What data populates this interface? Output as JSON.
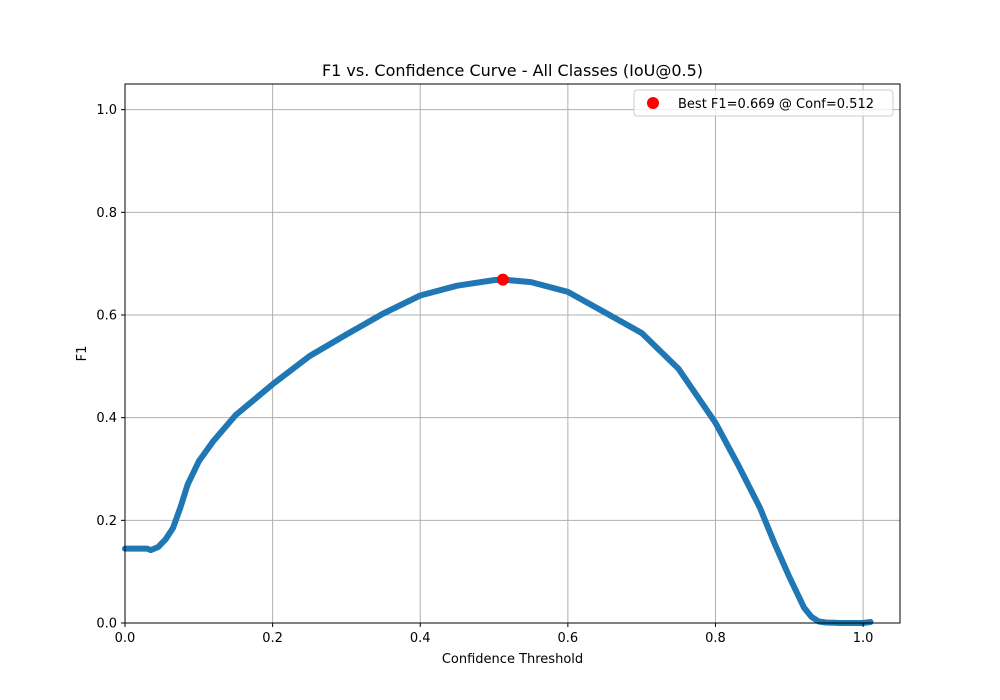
{
  "chart_data": {
    "type": "line",
    "title": "F1 vs. Confidence Curve - All Classes (IoU@0.5)",
    "xlabel": "Confidence Threshold",
    "ylabel": "F1",
    "xlim": [
      0.0,
      1.05
    ],
    "ylim": [
      0.0,
      1.05
    ],
    "grid": true,
    "x_ticks": [
      "0.0",
      "0.2",
      "0.4",
      "0.6",
      "0.8",
      "1.0"
    ],
    "y_ticks": [
      "0.0",
      "0.2",
      "0.4",
      "0.6",
      "0.8",
      "1.0"
    ],
    "legend_position": "top-right",
    "series": [
      {
        "name": "F1",
        "color": "#1f77b4",
        "x": [
          0.0,
          0.03,
          0.035,
          0.045,
          0.055,
          0.065,
          0.075,
          0.085,
          0.1,
          0.12,
          0.15,
          0.2,
          0.25,
          0.3,
          0.35,
          0.4,
          0.45,
          0.5,
          0.512,
          0.55,
          0.6,
          0.65,
          0.7,
          0.75,
          0.8,
          0.83,
          0.86,
          0.88,
          0.9,
          0.92,
          0.93,
          0.94,
          0.95,
          0.97,
          1.0,
          1.01
        ],
        "y": [
          0.145,
          0.145,
          0.142,
          0.148,
          0.163,
          0.185,
          0.225,
          0.27,
          0.315,
          0.355,
          0.405,
          0.465,
          0.52,
          0.562,
          0.603,
          0.638,
          0.657,
          0.668,
          0.669,
          0.664,
          0.645,
          0.605,
          0.565,
          0.495,
          0.39,
          0.31,
          0.225,
          0.155,
          0.09,
          0.03,
          0.012,
          0.003,
          0.001,
          0.0,
          0.0,
          0.002
        ]
      }
    ],
    "best_point": {
      "label": "Best F1=0.669 @ Conf=0.512",
      "x": 0.512,
      "y": 0.669,
      "color": "#ff0000"
    }
  }
}
